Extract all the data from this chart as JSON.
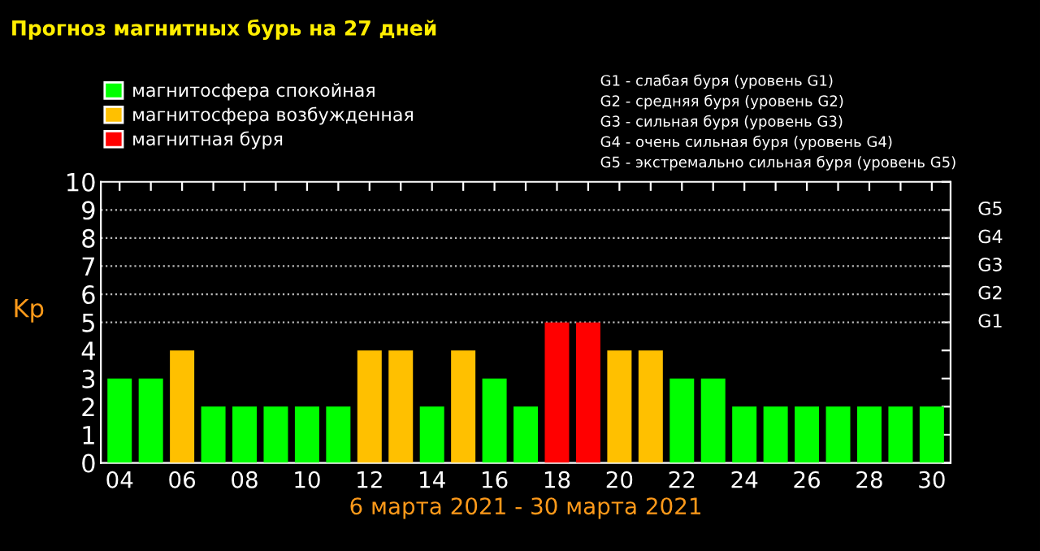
{
  "chart_data": {
    "type": "bar",
    "title": "Прогноз магнитных бурь на 27 дней",
    "xlabel": "6 марта 2021 - 30 марта 2021",
    "ylabel": "Kp",
    "categories": [
      "04",
      null,
      "06",
      null,
      "08",
      null,
      "10",
      null,
      "12",
      null,
      "14",
      null,
      "16",
      null,
      "18",
      null,
      "20",
      null,
      "22",
      null,
      "24",
      null,
      "26",
      null,
      "28",
      null,
      "30"
    ],
    "series": [
      {
        "name": "магнитосфера спокойная",
        "color": "#00ff00",
        "values": [
          3,
          3,
          null,
          2,
          2,
          2,
          2,
          2,
          null,
          null,
          2,
          null,
          3,
          2,
          null,
          null,
          null,
          null,
          3,
          3,
          2,
          2,
          2,
          2,
          2,
          2,
          2
        ]
      },
      {
        "name": "магнитосфера возбужденная",
        "color": "#ffc000",
        "values": [
          null,
          null,
          4,
          null,
          null,
          null,
          null,
          null,
          4,
          4,
          null,
          4,
          null,
          null,
          null,
          null,
          4,
          4,
          null,
          null,
          null,
          null,
          null,
          null,
          null,
          null,
          null
        ]
      },
      {
        "name": "магнитная буря",
        "color": "#ff0000",
        "values": [
          null,
          null,
          null,
          null,
          null,
          null,
          null,
          null,
          null,
          null,
          null,
          null,
          null,
          null,
          5,
          5,
          null,
          null,
          null,
          null,
          null,
          null,
          null,
          null,
          null,
          null,
          null
        ]
      }
    ],
    "ylim": [
      0,
      10
    ],
    "yticks": [
      0,
      1,
      2,
      3,
      4,
      5,
      6,
      7,
      8,
      9,
      10
    ],
    "ref_lines": [
      {
        "axis": "y",
        "value": 5,
        "label": "G1",
        "line_style": "dotted",
        "color": "#bbbbbb"
      },
      {
        "axis": "y",
        "value": 6,
        "label": "G2",
        "line_style": "dotted",
        "color": "#bbbbbb"
      },
      {
        "axis": "y",
        "value": 7,
        "label": "G3",
        "line_style": "dotted",
        "color": "#bbbbbb"
      },
      {
        "axis": "y",
        "value": 8,
        "label": "G4",
        "line_style": "dotted",
        "color": "#bbbbbb"
      },
      {
        "axis": "y",
        "value": 9,
        "label": "G5",
        "line_style": "dotted",
        "color": "#bbbbbb"
      }
    ],
    "annotations": [
      "G1 - слабая буря (уровень G1)",
      "G2 - средняя буря (уровень G2)",
      "G3 - сильная буря (уровень G3)",
      "G4 - очень сильная буря (уровень G4)",
      "G5 - экстремально сильная буря (уровень G5)"
    ],
    "legend": "top left",
    "grid": false
  }
}
